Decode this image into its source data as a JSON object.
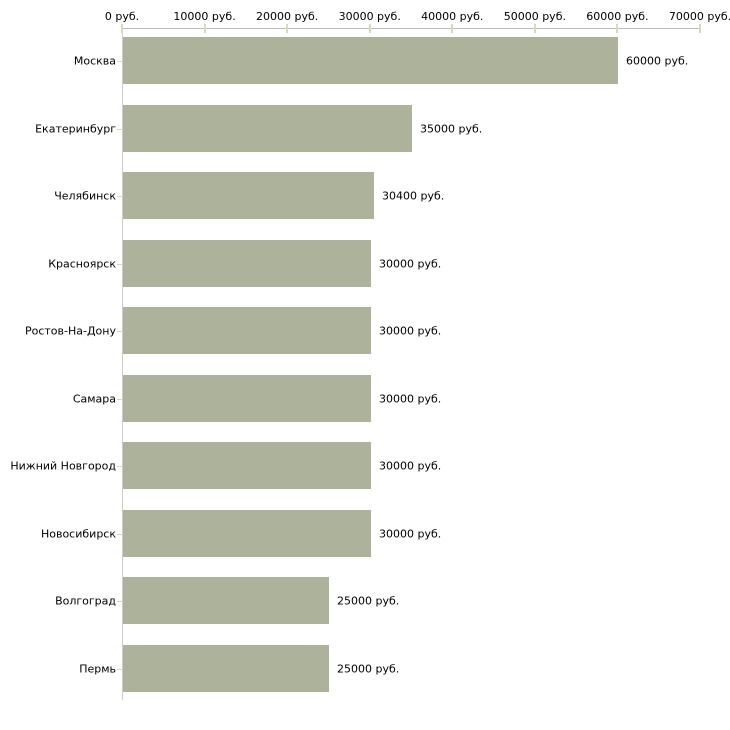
{
  "chart_data": {
    "type": "bar",
    "orientation": "horizontal",
    "title": "",
    "xlabel": "",
    "ylabel": "",
    "categories": [
      "Москва",
      "Екатеринбург",
      "Челябинск",
      "Красноярск",
      "Ростов-На-Дону",
      "Самара",
      "Нижний Новгород",
      "Новосибирск",
      "Волгоград",
      "Пермь"
    ],
    "values": [
      60000,
      35000,
      30400,
      30000,
      30000,
      30000,
      30000,
      30000,
      25000,
      25000
    ],
    "value_labels": [
      "60000 руб.",
      "35000 руб.",
      "30400 руб.",
      "30000 руб.",
      "30000 руб.",
      "30000 руб.",
      "30000 руб.",
      "30000 руб.",
      "25000 руб.",
      "25000 руб."
    ],
    "x_ticks": [
      0,
      10000,
      20000,
      30000,
      40000,
      50000,
      60000,
      70000
    ],
    "x_tick_labels": [
      "0 руб.",
      "10000 руб.",
      "20000 руб.",
      "30000 руб.",
      "40000 руб.",
      "50000 руб.",
      "60000 руб.",
      "70000 руб."
    ],
    "xlim": [
      0,
      70000
    ],
    "axis_position": "top",
    "grid": false,
    "legend": false,
    "colors": {
      "bar_fill": "#adb29b",
      "x_axis_line": "#bcbcbc",
      "y_axis_line": "#cccccc",
      "tick_mark": "#d9d9b5",
      "text": "#000000",
      "background": "#ffffff"
    }
  }
}
